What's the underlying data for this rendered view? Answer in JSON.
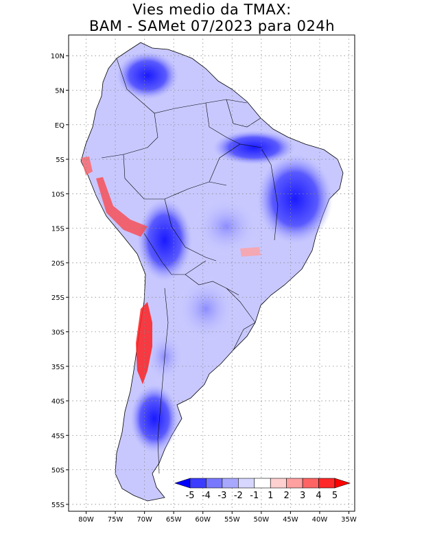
{
  "title": {
    "line1": "Vies medio da TMAX:",
    "line2": "BAM - SAMet 07/2023  para 024h"
  },
  "map": {
    "lat_labels": [
      "10N",
      "5N",
      "EQ",
      "5S",
      "10S",
      "15S",
      "20S",
      "25S",
      "30S",
      "35S",
      "40S",
      "45S",
      "50S",
      "55S"
    ],
    "lat_values": [
      10,
      5,
      0,
      -5,
      -10,
      -15,
      -20,
      -25,
      -30,
      -35,
      -40,
      -45,
      -50,
      -55
    ],
    "lon_labels": [
      "80W",
      "75W",
      "70W",
      "65W",
      "60W",
      "55W",
      "50W",
      "45W",
      "40W",
      "35W"
    ],
    "lon_values": [
      -80,
      -75,
      -70,
      -65,
      -60,
      -55,
      -50,
      -45,
      -40,
      -35
    ],
    "lon_range": [
      -83,
      -34
    ],
    "lat_range": [
      -56,
      13
    ],
    "grid": "dotted"
  },
  "colorbar": {
    "labels": [
      "-5",
      "-4",
      "-3",
      "-2",
      "-1",
      "1",
      "2",
      "3",
      "4",
      "5"
    ],
    "colors": [
      "#0000ff",
      "#3c3cff",
      "#7878ff",
      "#a8a8ff",
      "#d6d6ff",
      "#ffffff",
      "#ffd0d0",
      "#ffa0a0",
      "#ff6464",
      "#ff2828",
      "#ff0000"
    ]
  }
}
